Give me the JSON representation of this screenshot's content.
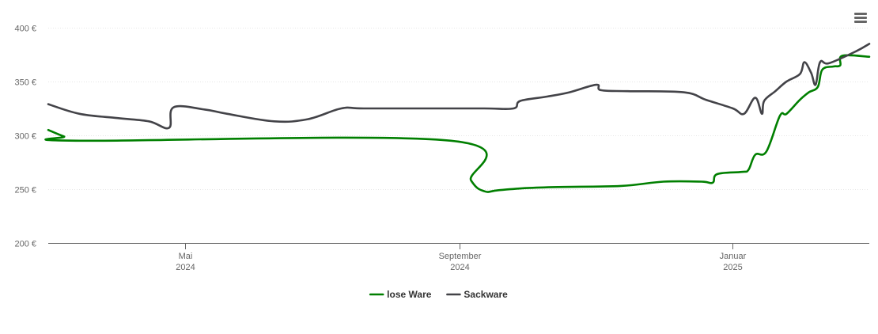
{
  "chart_data": {
    "type": "line",
    "y_ticks": [
      {
        "value": 200,
        "label": "200 €"
      },
      {
        "value": 250,
        "label": "250 €"
      },
      {
        "value": 300,
        "label": "300 €"
      },
      {
        "value": 350,
        "label": "350 €"
      },
      {
        "value": 400,
        "label": "400 €"
      }
    ],
    "ylim": [
      200,
      400
    ],
    "xlim": [
      "2024-03-01",
      "2025-03-03"
    ],
    "x_ticks": [
      {
        "date": "2024-05-01",
        "line1": "Mai",
        "line2": "2024"
      },
      {
        "date": "2024-09-01",
        "line1": "September",
        "line2": "2024"
      },
      {
        "date": "2025-01-01",
        "line1": "Januar",
        "line2": "2025"
      }
    ],
    "grid": "horizontal",
    "legend_position": "bottom-center",
    "series": [
      {
        "name": "lose Ware",
        "color": "#007f00",
        "points": [
          [
            "2024-03-01",
            305
          ],
          [
            "2024-03-08",
            299
          ],
          [
            "2024-03-15",
            295
          ],
          [
            "2024-08-28",
            295
          ],
          [
            "2024-09-06",
            258
          ],
          [
            "2024-09-12",
            248
          ],
          [
            "2024-09-18",
            249
          ],
          [
            "2024-10-01",
            251
          ],
          [
            "2024-10-15",
            252
          ],
          [
            "2024-11-12",
            253
          ],
          [
            "2024-12-01",
            257
          ],
          [
            "2024-12-18",
            257
          ],
          [
            "2024-12-23",
            256
          ],
          [
            "2024-12-25",
            264
          ],
          [
            "2025-01-05",
            266
          ],
          [
            "2025-01-08",
            268
          ],
          [
            "2025-01-11",
            282
          ],
          [
            "2025-01-16",
            285
          ],
          [
            "2025-01-22",
            318
          ],
          [
            "2025-01-25",
            320
          ],
          [
            "2025-01-31",
            333
          ],
          [
            "2025-02-04",
            340
          ],
          [
            "2025-02-08",
            345
          ],
          [
            "2025-02-10",
            361
          ],
          [
            "2025-02-15",
            364
          ],
          [
            "2025-02-18",
            365
          ],
          [
            "2025-02-19",
            374
          ],
          [
            "2025-03-03",
            373
          ]
        ]
      },
      {
        "name": "Sackware",
        "color": "#434348",
        "points": [
          [
            "2024-03-01",
            329
          ],
          [
            "2024-03-15",
            320
          ],
          [
            "2024-04-01",
            316
          ],
          [
            "2024-04-15",
            313
          ],
          [
            "2024-04-24",
            307
          ],
          [
            "2024-04-26",
            326
          ],
          [
            "2024-05-10",
            324
          ],
          [
            "2024-05-20",
            320
          ],
          [
            "2024-06-10",
            313
          ],
          [
            "2024-06-25",
            315
          ],
          [
            "2024-07-10",
            325
          ],
          [
            "2024-07-20",
            325
          ],
          [
            "2024-08-20",
            325
          ],
          [
            "2024-09-12",
            325
          ],
          [
            "2024-09-25",
            325
          ],
          [
            "2024-09-28",
            332
          ],
          [
            "2024-10-10",
            336
          ],
          [
            "2024-10-20",
            340
          ],
          [
            "2024-11-01",
            347
          ],
          [
            "2024-11-03",
            342
          ],
          [
            "2024-11-15",
            341
          ],
          [
            "2024-12-10",
            340
          ],
          [
            "2024-12-20",
            333
          ],
          [
            "2025-01-01",
            325
          ],
          [
            "2025-01-06",
            320
          ],
          [
            "2025-01-11",
            335
          ],
          [
            "2025-01-14",
            320
          ],
          [
            "2025-01-15",
            332
          ],
          [
            "2025-01-20",
            341
          ],
          [
            "2025-01-25",
            350
          ],
          [
            "2025-01-31",
            357
          ],
          [
            "2025-02-02",
            368
          ],
          [
            "2025-02-05",
            358
          ],
          [
            "2025-02-07",
            347
          ],
          [
            "2025-02-09",
            368
          ],
          [
            "2025-02-13",
            367
          ],
          [
            "2025-02-25",
            378
          ],
          [
            "2025-03-03",
            385
          ]
        ]
      }
    ]
  }
}
